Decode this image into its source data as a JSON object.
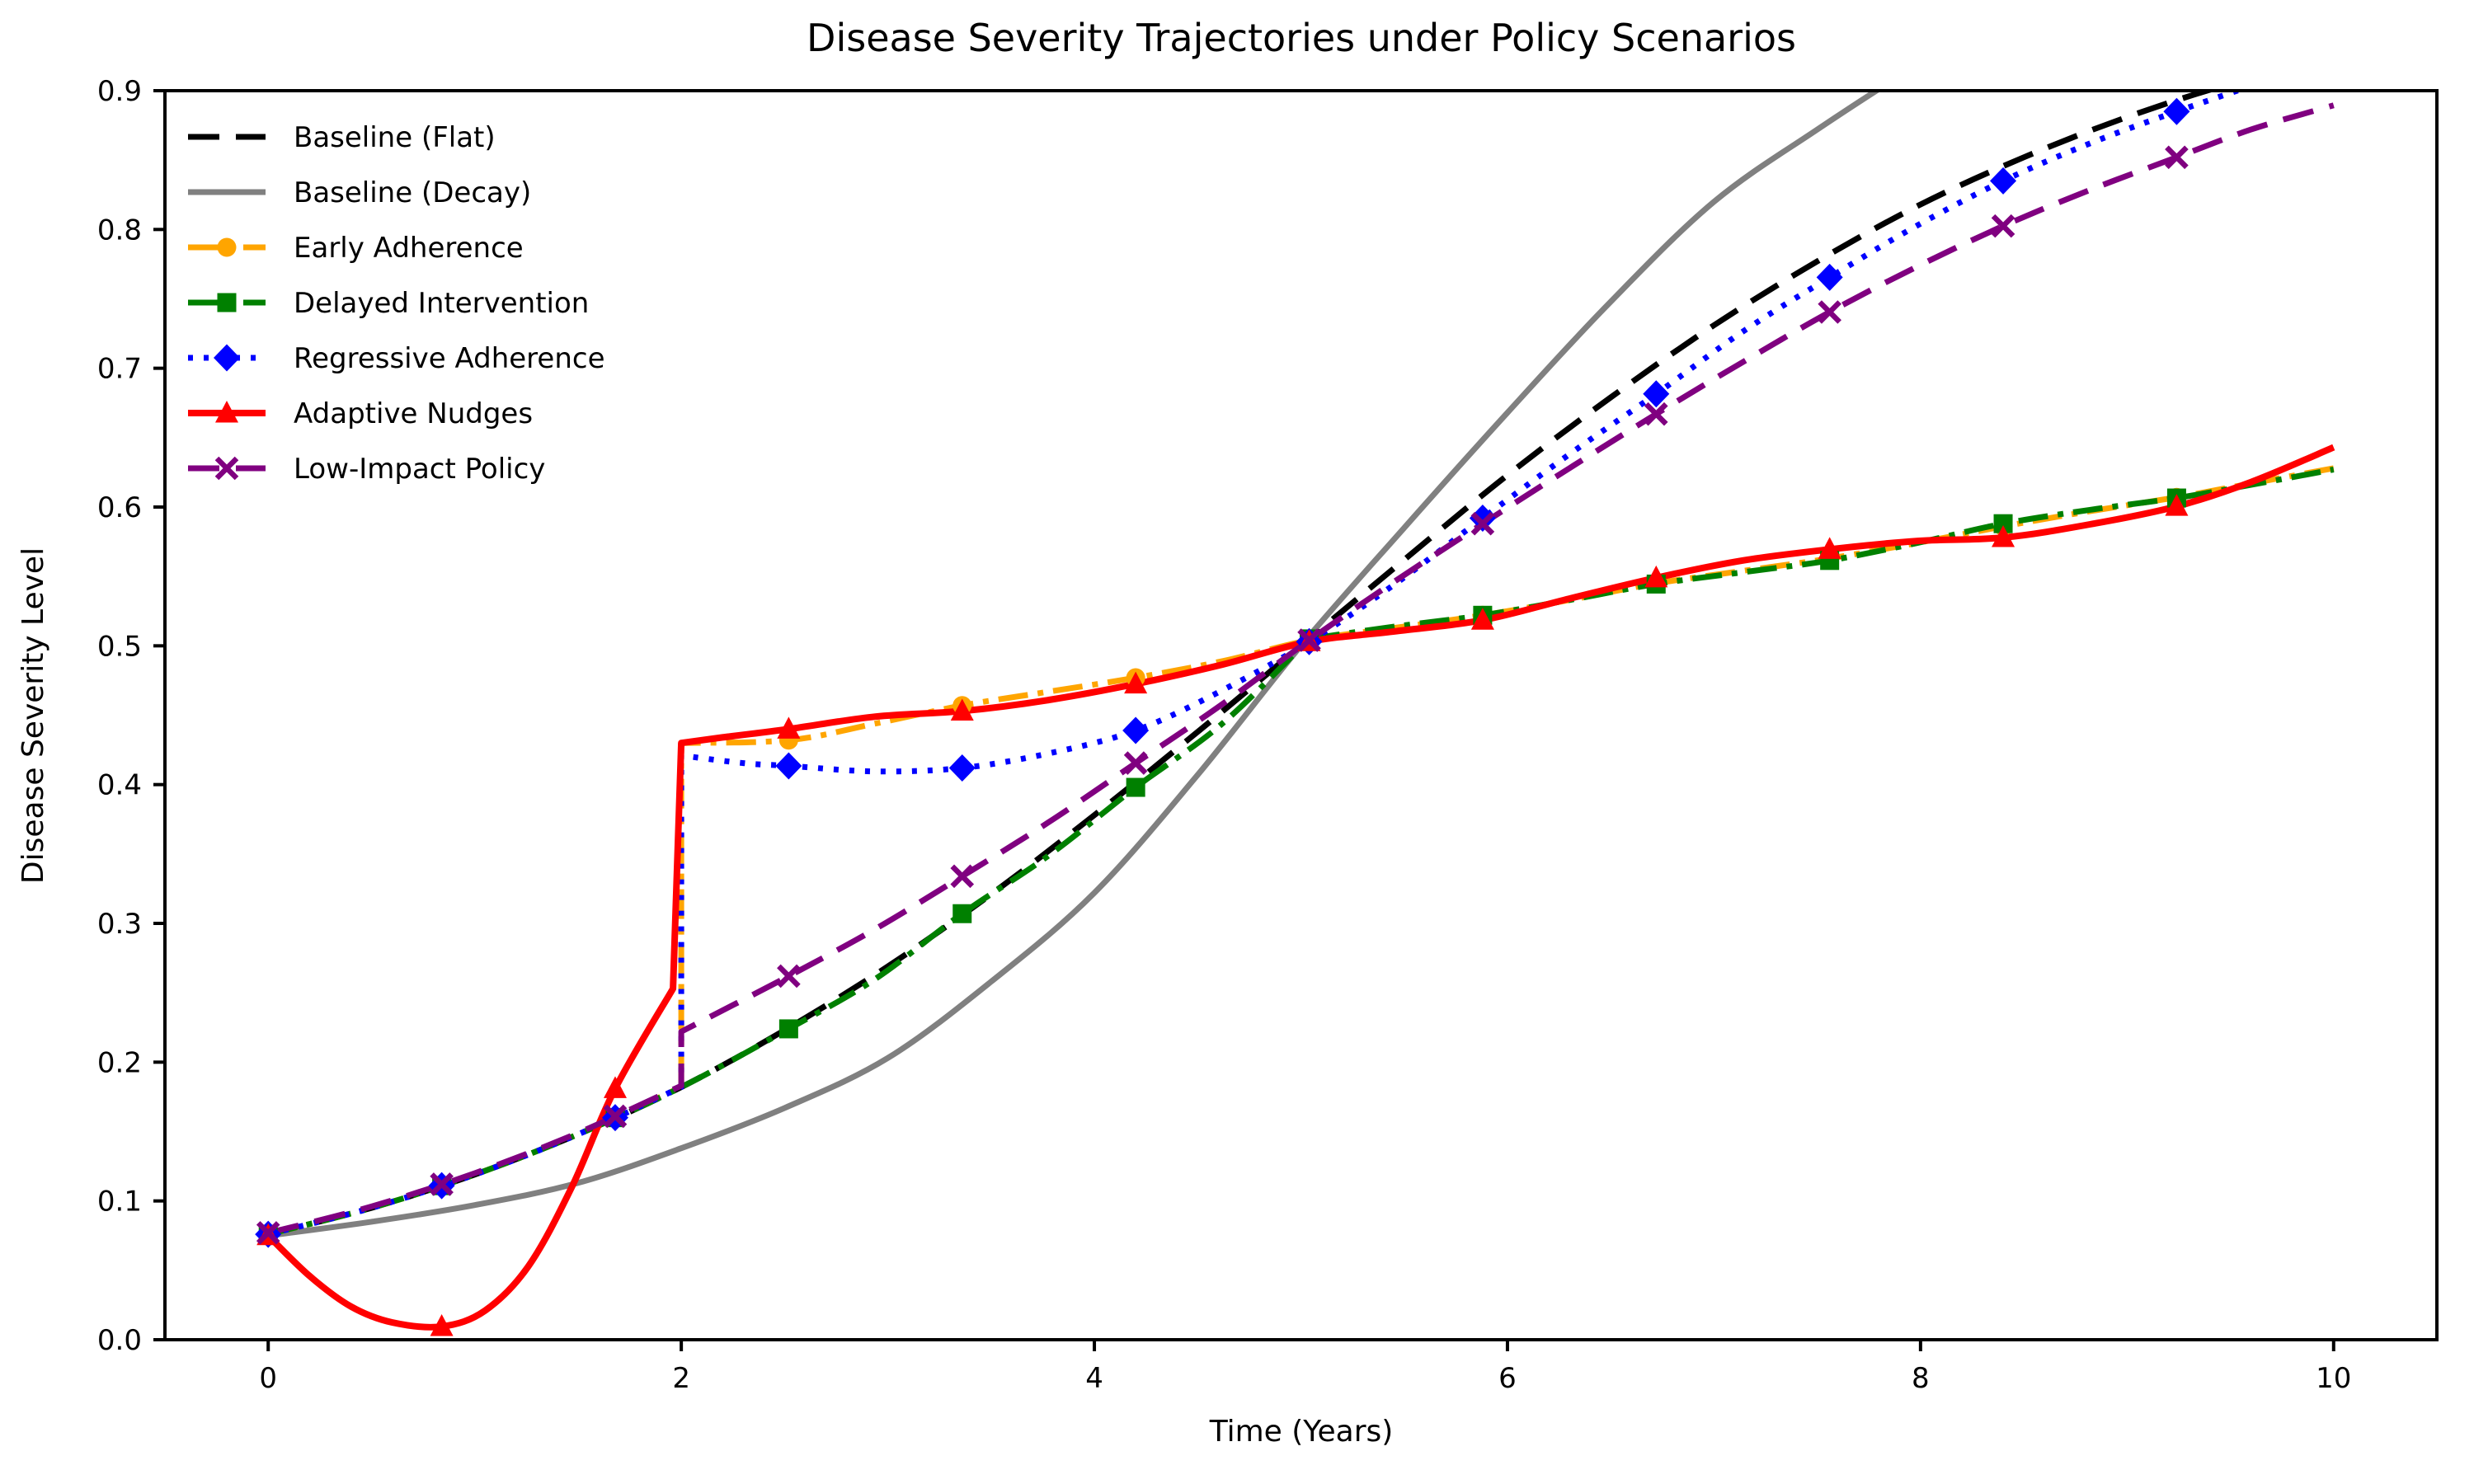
{
  "figure": {
    "background_color": "#ffffff",
    "axis_color": "#000000"
  },
  "chart_data": {
    "type": "line",
    "title": "Disease Severity Trajectories under Policy Scenarios",
    "xlabel": "Time (Years)",
    "ylabel": "Disease Severity Level",
    "xlim": [
      -0.5,
      10.5
    ],
    "ylim": [
      0.0,
      0.9
    ],
    "grid": false,
    "legend": {
      "position": "upper-left",
      "frame": false
    },
    "xticks": {
      "values": [
        0,
        2,
        4,
        6,
        8,
        10
      ],
      "labels": [
        "0",
        "2",
        "4",
        "6",
        "8",
        "10"
      ]
    },
    "yticks": {
      "values": [
        0.0,
        0.1,
        0.2,
        0.3,
        0.4,
        0.5,
        0.6,
        0.7,
        0.8,
        0.9
      ],
      "labels": [
        "0.0",
        "0.1",
        "0.2",
        "0.3",
        "0.4",
        "0.5",
        "0.6",
        "0.7",
        "0.8",
        "0.9"
      ]
    },
    "marker_times": [
      0,
      0.84,
      1.68,
      2.52,
      3.36,
      4.2,
      5.04,
      5.88,
      6.72,
      7.56,
      8.4,
      9.24
    ],
    "series": [
      {
        "id": "baseline-flat",
        "label": "Baseline (Flat)",
        "color": "#000000",
        "line_style": "dashed",
        "line_width": 7,
        "marker": null,
        "segments": [
          [
            [
              0,
              0.076
            ],
            [
              0.5,
              0.095
            ],
            [
              1,
              0.119
            ],
            [
              1.5,
              0.148
            ],
            [
              2,
              0.182
            ],
            [
              2.5,
              0.223
            ],
            [
              3,
              0.269
            ],
            [
              3.5,
              0.321
            ],
            [
              4,
              0.378
            ],
            [
              4.5,
              0.438
            ],
            [
              5,
              0.5
            ],
            [
              5.5,
              0.562
            ],
            [
              6,
              0.623
            ],
            [
              6.5,
              0.679
            ],
            [
              7,
              0.731
            ],
            [
              7.5,
              0.777
            ],
            [
              8,
              0.818
            ],
            [
              8.5,
              0.852
            ],
            [
              9,
              0.881
            ],
            [
              9.5,
              0.905
            ],
            [
              10,
              0.924
            ]
          ]
        ],
        "marker_points": []
      },
      {
        "id": "baseline-decay",
        "label": "Baseline (Decay)",
        "color": "#808080",
        "line_style": "solid",
        "line_width": 7,
        "marker": null,
        "segments": [
          [
            [
              0,
              0.075
            ],
            [
              0.5,
              0.085
            ],
            [
              1,
              0.097
            ],
            [
              1.5,
              0.113
            ],
            [
              2,
              0.138
            ],
            [
              2.5,
              0.167
            ],
            [
              3,
              0.203
            ],
            [
              3.5,
              0.258
            ],
            [
              4,
              0.322
            ],
            [
              4.5,
              0.407
            ],
            [
              5,
              0.5
            ],
            [
              5.5,
              0.585
            ],
            [
              6,
              0.668
            ],
            [
              6.5,
              0.748
            ],
            [
              7,
              0.82
            ],
            [
              7.5,
              0.872
            ],
            [
              8,
              0.92
            ],
            [
              8.3,
              0.945
            ]
          ]
        ],
        "marker_points": []
      },
      {
        "id": "early-adherence",
        "label": "Early Adherence",
        "color": "#FFA500",
        "line_style": "dashdot",
        "line_width": 7,
        "marker": "circle",
        "segments": [
          [
            [
              0,
              0.076
            ],
            [
              0.5,
              0.095
            ],
            [
              1,
              0.119
            ],
            [
              1.5,
              0.148
            ],
            [
              2,
              0.182
            ]
          ],
          [
            [
              2,
              0.43
            ],
            [
              2.52,
              0.432
            ],
            [
              2.94,
              0.444
            ],
            [
              3.36,
              0.457
            ],
            [
              3.78,
              0.467
            ],
            [
              4.2,
              0.477
            ],
            [
              4.62,
              0.489
            ],
            [
              5.04,
              0.504
            ],
            [
              5.46,
              0.513
            ],
            [
              5.88,
              0.522
            ],
            [
              6.3,
              0.533
            ],
            [
              6.72,
              0.545
            ],
            [
              7.14,
              0.554
            ],
            [
              7.56,
              0.563
            ],
            [
              7.98,
              0.574
            ],
            [
              8.4,
              0.586
            ],
            [
              8.82,
              0.597
            ],
            [
              9.24,
              0.607
            ],
            [
              9.6,
              0.617
            ],
            [
              10,
              0.628
            ]
          ]
        ],
        "marker_points": [
          [
            0,
            0.076
          ],
          [
            0.84,
            0.111
          ],
          [
            1.68,
            0.16
          ],
          [
            2.52,
            0.432
          ],
          [
            3.36,
            0.457
          ],
          [
            4.2,
            0.477
          ],
          [
            5.04,
            0.504
          ],
          [
            5.88,
            0.522
          ],
          [
            6.72,
            0.545
          ],
          [
            7.56,
            0.563
          ],
          [
            8.4,
            0.586
          ],
          [
            9.24,
            0.607
          ]
        ]
      },
      {
        "id": "delayed-intervention",
        "label": "Delayed Intervention",
        "color": "#008000",
        "line_style": "dashdot",
        "line_width": 7,
        "marker": "square",
        "segments": [
          [
            [
              0,
              0.076
            ],
            [
              0.5,
              0.095
            ],
            [
              1,
              0.119
            ],
            [
              1.5,
              0.148
            ],
            [
              2,
              0.182
            ],
            [
              2.52,
              0.224
            ],
            [
              2.94,
              0.26
            ],
            [
              3.36,
              0.307
            ],
            [
              3.78,
              0.349
            ],
            [
              4.2,
              0.398
            ],
            [
              4.62,
              0.444
            ],
            [
              5.04,
              0.505
            ]
          ],
          [
            [
              5.04,
              0.505
            ],
            [
              5.46,
              0.514
            ],
            [
              5.88,
              0.522
            ],
            [
              6.3,
              0.533
            ],
            [
              6.72,
              0.5445
            ],
            [
              7.14,
              0.553
            ],
            [
              7.56,
              0.5615
            ],
            [
              7.98,
              0.574
            ],
            [
              8.4,
              0.588
            ],
            [
              8.82,
              0.598
            ],
            [
              9.24,
              0.6065
            ],
            [
              9.6,
              0.616
            ],
            [
              10,
              0.627
            ]
          ]
        ],
        "marker_points": [
          [
            0,
            0.076
          ],
          [
            0.84,
            0.111
          ],
          [
            1.68,
            0.16
          ],
          [
            2.52,
            0.224
          ],
          [
            3.36,
            0.307
          ],
          [
            4.2,
            0.398
          ],
          [
            5.04,
            0.505
          ],
          [
            5.88,
            0.522
          ],
          [
            6.72,
            0.5445
          ],
          [
            7.56,
            0.5615
          ],
          [
            8.4,
            0.588
          ],
          [
            9.24,
            0.6065
          ]
        ]
      },
      {
        "id": "regressive-adherence",
        "label": "Regressive Adherence",
        "color": "#0000FF",
        "line_style": "dotted",
        "line_width": 7,
        "marker": "diamond",
        "segments": [
          [
            [
              0,
              0.076
            ],
            [
              0.5,
              0.095
            ],
            [
              1,
              0.119
            ],
            [
              1.5,
              0.148
            ],
            [
              2,
              0.182
            ]
          ],
          [
            [
              2,
              0.421
            ],
            [
              2.3,
              0.4155
            ],
            [
              2.52,
              0.4135
            ],
            [
              2.94,
              0.4095
            ],
            [
              3.36,
              0.412
            ],
            [
              3.78,
              0.4225
            ],
            [
              4.2,
              0.439
            ],
            [
              4.62,
              0.468
            ],
            [
              5.04,
              0.503
            ],
            [
              5.46,
              0.545
            ],
            [
              5.88,
              0.592
            ],
            [
              6.3,
              0.638
            ],
            [
              6.72,
              0.6815
            ],
            [
              7.14,
              0.7265
            ],
            [
              7.56,
              0.7655
            ],
            [
              7.98,
              0.8025
            ],
            [
              8.4,
              0.835
            ],
            [
              8.82,
              0.862
            ],
            [
              9.24,
              0.885
            ],
            [
              9.7,
              0.908
            ],
            [
              10,
              0.92
            ]
          ]
        ],
        "marker_points": [
          [
            0,
            0.076
          ],
          [
            0.84,
            0.111
          ],
          [
            1.68,
            0.16
          ],
          [
            2.52,
            0.4135
          ],
          [
            3.36,
            0.412
          ],
          [
            4.2,
            0.439
          ],
          [
            5.04,
            0.503
          ],
          [
            5.88,
            0.592
          ],
          [
            6.72,
            0.6815
          ],
          [
            7.56,
            0.7655
          ],
          [
            8.4,
            0.835
          ],
          [
            9.24,
            0.885
          ]
        ]
      },
      {
        "id": "adaptive-nudges",
        "label": "Adaptive Nudges",
        "color": "#FF0000",
        "line_style": "solid",
        "line_width": 8,
        "marker": "triangle",
        "segments": [
          [
            [
              0,
              0.075
            ],
            [
              0.2,
              0.046
            ],
            [
              0.4,
              0.024
            ],
            [
              0.6,
              0.0125
            ],
            [
              0.84,
              0.0095
            ],
            [
              1.05,
              0.021
            ],
            [
              1.26,
              0.053
            ],
            [
              1.47,
              0.11
            ],
            [
              1.68,
              0.181
            ],
            [
              1.96,
              0.253
            ]
          ],
          [
            [
              2,
              0.43
            ],
            [
              2.2,
              0.434
            ],
            [
              2.52,
              0.44
            ],
            [
              2.94,
              0.449
            ],
            [
              3.36,
              0.453
            ],
            [
              3.78,
              0.461
            ],
            [
              4.2,
              0.4725
            ],
            [
              4.62,
              0.4865
            ],
            [
              5.04,
              0.503
            ],
            [
              5.46,
              0.5105
            ],
            [
              5.88,
              0.5185
            ],
            [
              6.3,
              0.534
            ],
            [
              6.72,
              0.549
            ],
            [
              7.14,
              0.5615
            ],
            [
              7.56,
              0.5695
            ],
            [
              7.98,
              0.5755
            ],
            [
              8.4,
              0.578
            ],
            [
              8.82,
              0.5875
            ],
            [
              9.24,
              0.6005
            ],
            [
              9.6,
              0.618
            ],
            [
              10,
              0.643
            ]
          ]
        ],
        "marker_points": [
          [
            0,
            0.075
          ],
          [
            0.84,
            0.0095
          ],
          [
            1.68,
            0.181
          ],
          [
            2.52,
            0.44
          ],
          [
            3.36,
            0.453
          ],
          [
            4.2,
            0.4725
          ],
          [
            5.04,
            0.503
          ],
          [
            5.88,
            0.5185
          ],
          [
            6.72,
            0.549
          ],
          [
            7.56,
            0.5695
          ],
          [
            8.4,
            0.578
          ],
          [
            9.24,
            0.6005
          ]
        ]
      },
      {
        "id": "low-impact-policy",
        "label": "Low-Impact Policy",
        "color": "#800080",
        "line_style": "dashed",
        "line_width": 7,
        "marker": "x",
        "segments": [
          [
            [
              0,
              0.077
            ],
            [
              0.5,
              0.096
            ],
            [
              1,
              0.12
            ],
            [
              1.5,
              0.149
            ],
            [
              2,
              0.183
            ]
          ],
          [
            [
              2,
              0.222
            ],
            [
              2.52,
              0.262
            ],
            [
              2.94,
              0.296
            ],
            [
              3.36,
              0.334
            ],
            [
              3.78,
              0.373
            ],
            [
              4.2,
              0.4155
            ],
            [
              4.62,
              0.458
            ],
            [
              5.04,
              0.504
            ],
            [
              5.46,
              0.547
            ],
            [
              5.88,
              0.588
            ],
            [
              6.3,
              0.628
            ],
            [
              6.72,
              0.667
            ],
            [
              7.14,
              0.7045
            ],
            [
              7.56,
              0.7405
            ],
            [
              7.98,
              0.773
            ],
            [
              8.4,
              0.8025
            ],
            [
              8.82,
              0.8285
            ],
            [
              9.24,
              0.852
            ],
            [
              9.6,
              0.872
            ],
            [
              10,
              0.8895
            ]
          ]
        ],
        "marker_points": [
          [
            0,
            0.077
          ],
          [
            0.84,
            0.112
          ],
          [
            1.68,
            0.161
          ],
          [
            2.52,
            0.262
          ],
          [
            3.36,
            0.334
          ],
          [
            4.2,
            0.4155
          ],
          [
            5.04,
            0.504
          ],
          [
            5.88,
            0.588
          ],
          [
            6.72,
            0.667
          ],
          [
            7.56,
            0.7405
          ],
          [
            8.4,
            0.8025
          ],
          [
            9.24,
            0.852
          ]
        ]
      }
    ]
  }
}
